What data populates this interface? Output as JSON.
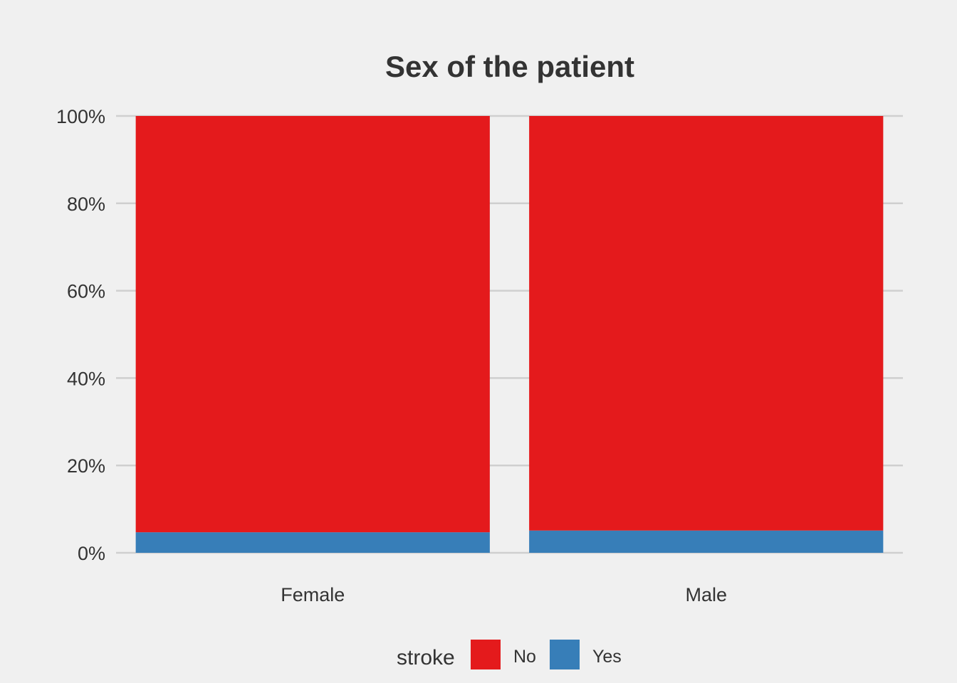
{
  "chart_data": {
    "type": "bar",
    "stacked": true,
    "title": "Sex of the patient",
    "xlabel": "",
    "ylabel": "",
    "categories": [
      "Female",
      "Male"
    ],
    "series": [
      {
        "name": "No",
        "values": [
          95.3,
          94.9
        ],
        "color": "#e41a1c"
      },
      {
        "name": "Yes",
        "values": [
          4.7,
          5.1
        ],
        "color": "#377eb8"
      }
    ],
    "ylim": [
      0,
      100
    ],
    "yticks": [
      0,
      20,
      40,
      60,
      80,
      100
    ],
    "ytick_labels": [
      "0%",
      "20%",
      "40%",
      "60%",
      "80%",
      "100%"
    ],
    "grid": "horizontal",
    "legend": {
      "title": "stroke",
      "position": "bottom"
    }
  }
}
